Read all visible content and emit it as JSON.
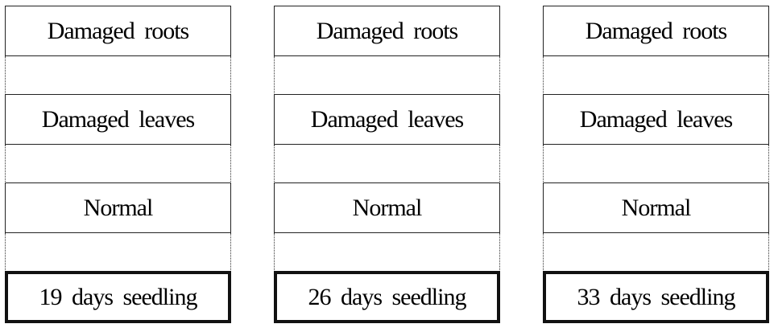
{
  "columns": [
    {
      "stages": [
        "Damaged roots",
        "Damaged leaves",
        "Normal"
      ],
      "seedling": "19 days seedling"
    },
    {
      "stages": [
        "Damaged roots",
        "Damaged leaves",
        "Normal"
      ],
      "seedling": "26 days seedling"
    },
    {
      "stages": [
        "Damaged roots",
        "Damaged leaves",
        "Normal"
      ],
      "seedling": "33 days seedling"
    }
  ]
}
